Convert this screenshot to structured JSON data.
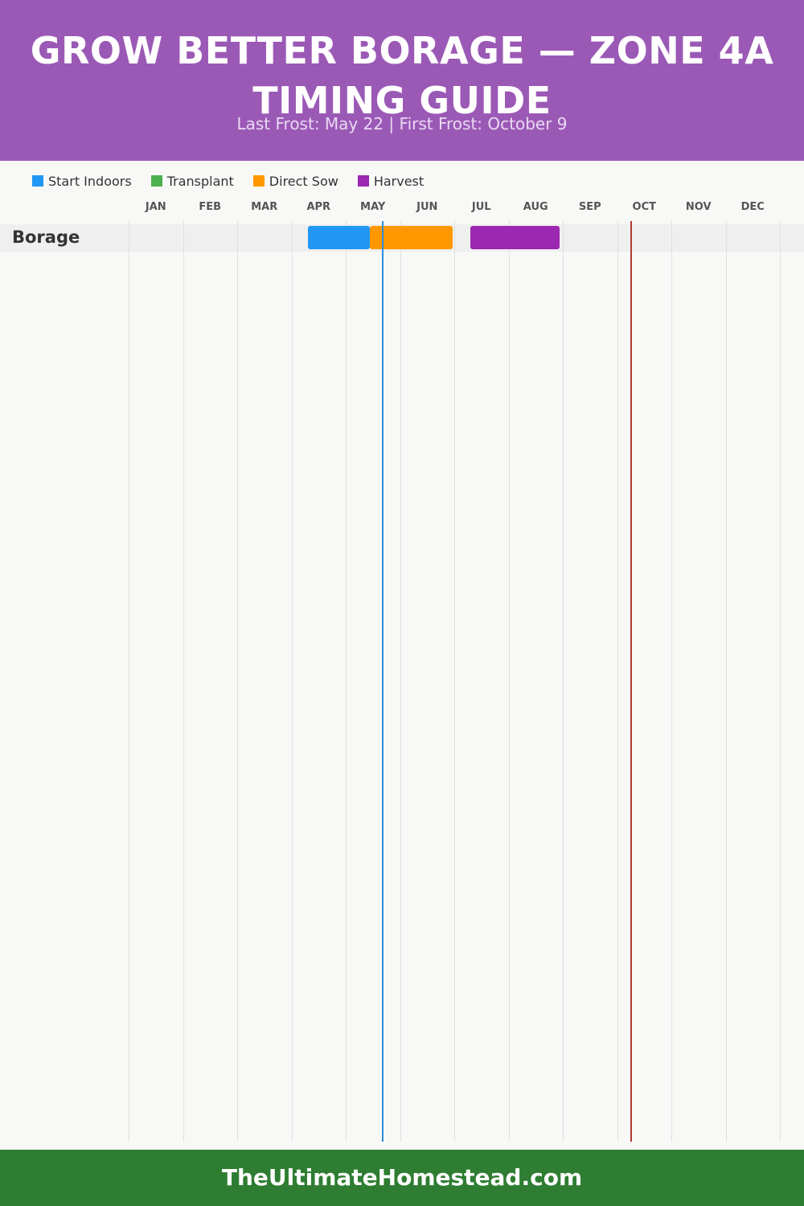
{
  "header": {
    "title": "GROW BETTER BORAGE — ZONE 4A TIMING GUIDE",
    "subtitle": "Last Frost: May 22 | First Frost: October 9"
  },
  "legend": [
    {
      "label": "Start Indoors",
      "color": "#2196f3"
    },
    {
      "label": "Transplant",
      "color": "#4caf50"
    },
    {
      "label": "Direct Sow",
      "color": "#ff9800"
    },
    {
      "label": "Harvest",
      "color": "#9c27b0"
    }
  ],
  "footer": {
    "text": "TheUltimateHomestead.com"
  },
  "chart_data": {
    "type": "gantt",
    "months": [
      "JAN",
      "FEB",
      "MAR",
      "APR",
      "MAY",
      "JUN",
      "JUL",
      "AUG",
      "SEP",
      "OCT",
      "NOV",
      "DEC"
    ],
    "crops": [
      {
        "name": "Borage",
        "tasks": [
          {
            "activity": "Start Indoors",
            "start": "Apr 10",
            "end": "May 15"
          },
          {
            "activity": "Direct Sow",
            "start": "May 15",
            "end": "Jun 30"
          },
          {
            "activity": "Harvest",
            "start": "Jul 10",
            "end": "Aug 30"
          }
        ]
      }
    ],
    "frost_lines": [
      {
        "label": "Last Frost",
        "date": "May 22",
        "color": "#2a8fd9"
      },
      {
        "label": "First Frost",
        "date": "October 9",
        "color": "#b03a2e"
      }
    ],
    "grid": true,
    "legend_position": "top-left"
  }
}
